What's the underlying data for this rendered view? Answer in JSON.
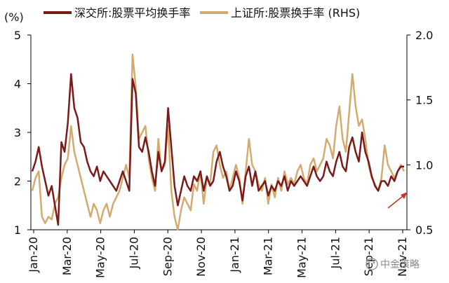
{
  "chart_data": {
    "type": "line",
    "unit_label": "(%)",
    "left_axis": {
      "ylim": [
        1,
        5
      ],
      "ticks": [
        "1",
        "2",
        "3",
        "4",
        "5"
      ]
    },
    "right_axis": {
      "label": "",
      "ylim": [
        0.5,
        2.0
      ],
      "ticks": [
        "0.5",
        "1.0",
        "1.5",
        "2.0"
      ]
    },
    "x_ticks": [
      "Jan-20",
      "Mar-20",
      "May-20",
      "Jul-20",
      "Sep-20",
      "Nov-20",
      "Jan-21",
      "Mar-21",
      "May-21",
      "Jul-21",
      "Sep-21",
      "Nov-21"
    ],
    "grid": false,
    "legend_position": "top",
    "series": [
      {
        "name": "深交所:股票平均换手率",
        "axis": "left",
        "color": "#7a1a1a",
        "values": [
          2.2,
          2.4,
          2.7,
          2.3,
          2.0,
          1.7,
          1.9,
          1.5,
          1.1,
          2.8,
          2.6,
          3.2,
          4.2,
          3.5,
          3.3,
          2.8,
          2.7,
          2.4,
          2.2,
          2.1,
          2.3,
          2.0,
          2.2,
          2.1,
          2.0,
          1.9,
          1.8,
          2.0,
          2.2,
          2.0,
          1.8,
          4.1,
          3.8,
          2.7,
          2.6,
          2.9,
          2.6,
          2.2,
          1.9,
          2.6,
          2.2,
          2.4,
          3.5,
          2.7,
          1.9,
          1.5,
          1.8,
          2.1,
          1.9,
          1.8,
          2.1,
          2.0,
          2.2,
          1.8,
          2.1,
          1.9,
          2.0,
          2.4,
          2.6,
          2.3,
          2.1,
          1.8,
          1.9,
          2.2,
          2.0,
          1.6,
          2.1,
          2.3,
          1.9,
          2.2,
          1.8,
          1.9,
          2.0,
          1.7,
          1.9,
          1.8,
          2.0,
          1.9,
          2.1,
          1.8,
          2.0,
          1.9,
          2.0,
          2.1,
          2.0,
          1.9,
          2.1,
          2.3,
          2.1,
          2.0,
          2.1,
          2.4,
          2.2,
          2.1,
          2.4,
          2.6,
          2.3,
          2.2,
          2.7,
          2.9,
          2.6,
          2.4,
          3.0,
          2.6,
          2.4,
          2.1,
          1.9,
          1.8,
          2.0,
          2.0,
          1.9,
          2.1,
          2.0,
          2.2,
          2.3,
          2.3
        ]
      },
      {
        "name": "上证所:股票换手率 (RHS)",
        "axis": "right",
        "color": "#d4aa6f",
        "values": [
          0.8,
          0.9,
          0.95,
          0.6,
          0.55,
          0.6,
          0.58,
          0.7,
          0.75,
          0.9,
          1.0,
          1.05,
          1.3,
          1.1,
          1.0,
          0.9,
          0.8,
          0.7,
          0.6,
          0.7,
          0.65,
          0.55,
          0.65,
          0.7,
          0.6,
          0.7,
          0.75,
          0.8,
          0.9,
          1.0,
          0.9,
          1.85,
          1.6,
          1.2,
          1.25,
          1.3,
          1.05,
          0.9,
          0.8,
          1.2,
          0.95,
          1.0,
          1.3,
          0.8,
          0.6,
          0.5,
          0.65,
          0.75,
          0.7,
          0.65,
          0.85,
          0.8,
          0.95,
          0.7,
          0.9,
          0.85,
          1.1,
          1.15,
          1.0,
          0.9,
          0.95,
          0.8,
          0.9,
          1.0,
          0.9,
          0.7,
          0.95,
          1.2,
          1.0,
          0.95,
          0.85,
          0.8,
          0.9,
          0.7,
          0.85,
          0.75,
          0.9,
          0.8,
          0.95,
          0.85,
          0.9,
          0.85,
          0.95,
          1.0,
          0.9,
          0.85,
          1.0,
          1.05,
          0.95,
          1.0,
          1.05,
          1.2,
          1.15,
          1.05,
          1.3,
          1.45,
          1.2,
          1.1,
          1.4,
          1.7,
          1.45,
          1.3,
          1.35,
          1.2,
          1.0,
          0.9,
          0.85,
          0.8,
          0.9,
          1.15,
          1.0,
          0.95,
          0.9,
          0.95,
          1.0,
          0.95
        ]
      }
    ]
  },
  "watermark": {
    "text": "中金策略"
  }
}
